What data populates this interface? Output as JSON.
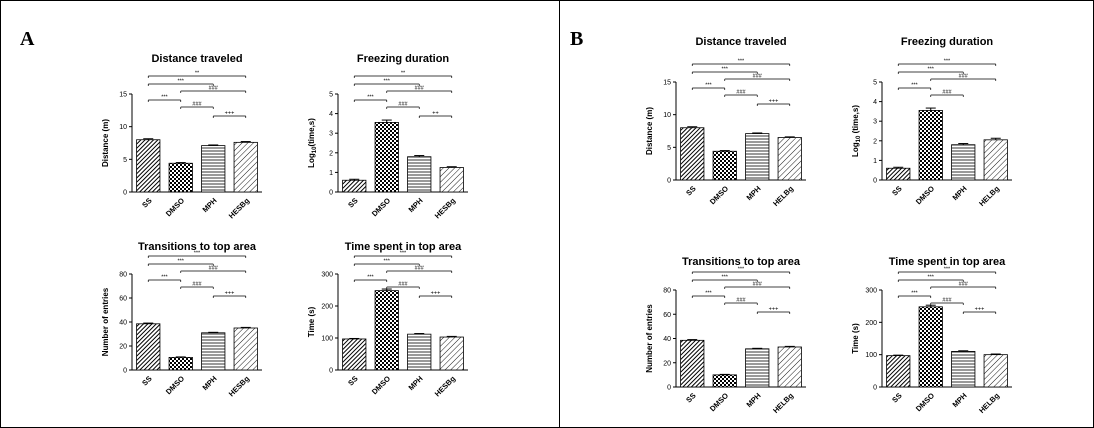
{
  "panels": [
    {
      "label": "A",
      "charts": [
        {
          "type": "bar",
          "title": "Distance traveled",
          "ylabel": "Distance (m)",
          "ylabel_parts": null,
          "ylim": [
            0,
            15
          ],
          "yticks": [
            0,
            5,
            10,
            15
          ],
          "categories": [
            "SS",
            "DMSO",
            "MPH",
            "HESBg"
          ],
          "values": [
            8.0,
            4.4,
            7.1,
            7.6
          ],
          "errors": [
            0.15,
            0.1,
            0.1,
            0.12
          ],
          "annotations": [
            {
              "from": 0,
              "to": 3,
              "label": "**"
            },
            {
              "from": 0,
              "to": 2,
              "label": "***"
            },
            {
              "from": 1,
              "to": 3,
              "label": "###"
            },
            {
              "from": 0,
              "to": 1,
              "label": "***"
            },
            {
              "from": 1,
              "to": 2,
              "label": "###"
            },
            {
              "from": 2,
              "to": 3,
              "label": "+++"
            }
          ]
        },
        {
          "type": "bar",
          "title": "Freezing duration",
          "ylabel": "",
          "ylabel_parts": [
            "Log",
            "10",
            "(time,s)"
          ],
          "ylim": [
            0,
            5
          ],
          "yticks": [
            0,
            1,
            2,
            3,
            4,
            5
          ],
          "categories": [
            "SS",
            "DMSO",
            "MPH",
            "HESBg"
          ],
          "values": [
            0.6,
            3.55,
            1.8,
            1.25
          ],
          "errors": [
            0.05,
            0.12,
            0.06,
            0.04
          ],
          "annotations": [
            {
              "from": 0,
              "to": 3,
              "label": "**"
            },
            {
              "from": 0,
              "to": 2,
              "label": "***"
            },
            {
              "from": 1,
              "to": 3,
              "label": "###"
            },
            {
              "from": 0,
              "to": 1,
              "label": "***"
            },
            {
              "from": 1,
              "to": 2,
              "label": "###"
            },
            {
              "from": 2,
              "to": 3,
              "label": "++"
            }
          ]
        },
        {
          "type": "bar",
          "title": "Transitions to top area",
          "ylabel": "Number of entries",
          "ylabel_parts": null,
          "ylim": [
            0,
            80
          ],
          "yticks": [
            0,
            20,
            40,
            60,
            80
          ],
          "categories": [
            "SS",
            "DMSO",
            "MPH",
            "HESBg"
          ],
          "values": [
            38.5,
            10.5,
            31.0,
            35.0
          ],
          "errors": [
            0.6,
            0.4,
            0.4,
            0.5
          ],
          "annotations": [
            {
              "from": 0,
              "to": 3,
              "label": "***"
            },
            {
              "from": 0,
              "to": 2,
              "label": "***"
            },
            {
              "from": 1,
              "to": 3,
              "label": "###"
            },
            {
              "from": 0,
              "to": 1,
              "label": "***"
            },
            {
              "from": 1,
              "to": 2,
              "label": "###"
            },
            {
              "from": 2,
              "to": 3,
              "label": "+++"
            }
          ]
        },
        {
          "type": "bar",
          "title": "Time spent in top area",
          "ylabel": "Time (s)",
          "ylabel_parts": null,
          "ylim": [
            0,
            300
          ],
          "yticks": [
            0,
            100,
            200,
            300
          ],
          "categories": [
            "SS",
            "DMSO",
            "MPH",
            "HESBg"
          ],
          "values": [
            97,
            248,
            112,
            103
          ],
          "errors": [
            1.5,
            5,
            2,
            2
          ],
          "annotations": [
            {
              "from": 0,
              "to": 3,
              "label": "***"
            },
            {
              "from": 0,
              "to": 2,
              "label": "***"
            },
            {
              "from": 1,
              "to": 3,
              "label": "###"
            },
            {
              "from": 0,
              "to": 1,
              "label": "***"
            },
            {
              "from": 1,
              "to": 2,
              "label": "###"
            },
            {
              "from": 2,
              "to": 3,
              "label": "+++"
            }
          ]
        }
      ]
    },
    {
      "label": "B",
      "charts": [
        {
          "type": "bar",
          "title": "Distance traveled",
          "ylabel": "Distance (m)",
          "ylabel_parts": null,
          "ylim": [
            0,
            15
          ],
          "yticks": [
            0,
            5,
            10,
            15
          ],
          "categories": [
            "SS",
            "DMSO",
            "MPH",
            "HELBg"
          ],
          "values": [
            8.0,
            4.4,
            7.1,
            6.5
          ],
          "errors": [
            0.15,
            0.1,
            0.1,
            0.1
          ],
          "annotations": [
            {
              "from": 0,
              "to": 3,
              "label": "***"
            },
            {
              "from": 0,
              "to": 2,
              "label": "***"
            },
            {
              "from": 1,
              "to": 3,
              "label": "###"
            },
            {
              "from": 0,
              "to": 1,
              "label": "***"
            },
            {
              "from": 1,
              "to": 2,
              "label": "###"
            },
            {
              "from": 2,
              "to": 3,
              "label": "+++"
            }
          ]
        },
        {
          "type": "bar",
          "title": "Freezing duration",
          "ylabel": "",
          "ylabel_parts": [
            "Log",
            "10",
            " (time,s)"
          ],
          "ylim": [
            0,
            5
          ],
          "yticks": [
            0,
            1,
            2,
            3,
            4,
            5
          ],
          "categories": [
            "SS",
            "DMSO",
            "MPH",
            "HELBg"
          ],
          "values": [
            0.6,
            3.55,
            1.8,
            2.05
          ],
          "errors": [
            0.05,
            0.12,
            0.06,
            0.08
          ],
          "annotations": [
            {
              "from": 0,
              "to": 3,
              "label": "***"
            },
            {
              "from": 0,
              "to": 2,
              "label": "***"
            },
            {
              "from": 1,
              "to": 3,
              "label": "###"
            },
            {
              "from": 0,
              "to": 1,
              "label": "***"
            },
            {
              "from": 1,
              "to": 2,
              "label": "###"
            }
          ]
        },
        {
          "type": "bar",
          "title": "Transitions to top area",
          "ylabel": "Number of entries",
          "ylabel_parts": null,
          "ylim": [
            0,
            80
          ],
          "yticks": [
            0,
            20,
            40,
            60,
            80
          ],
          "categories": [
            "SS",
            "DMSO",
            "MPH",
            "HELBg"
          ],
          "values": [
            38.5,
            10.0,
            31.5,
            33.0
          ],
          "errors": [
            0.6,
            0.4,
            0.4,
            0.5
          ],
          "annotations": [
            {
              "from": 0,
              "to": 3,
              "label": "***"
            },
            {
              "from": 0,
              "to": 2,
              "label": "***"
            },
            {
              "from": 1,
              "to": 3,
              "label": "###"
            },
            {
              "from": 0,
              "to": 1,
              "label": "***"
            },
            {
              "from": 1,
              "to": 2,
              "label": "###"
            },
            {
              "from": 2,
              "to": 3,
              "label": "+++"
            }
          ]
        },
        {
          "type": "bar",
          "title": "Time spent in top area",
          "ylabel": "Time (s)",
          "ylabel_parts": null,
          "ylim": [
            0,
            300
          ],
          "yticks": [
            0,
            100,
            200,
            300
          ],
          "categories": [
            "SS",
            "DMSO",
            "MPH",
            "HELBg"
          ],
          "values": [
            97,
            248,
            110,
            100
          ],
          "errors": [
            1.5,
            5,
            2,
            2
          ],
          "annotations": [
            {
              "from": 0,
              "to": 3,
              "label": "***"
            },
            {
              "from": 0,
              "to": 2,
              "label": "***"
            },
            {
              "from": 1,
              "to": 3,
              "label": "###"
            },
            {
              "from": 0,
              "to": 1,
              "label": "***"
            },
            {
              "from": 1,
              "to": 2,
              "label": "###"
            },
            {
              "from": 2,
              "to": 3,
              "label": "+++"
            }
          ]
        }
      ]
    }
  ]
}
